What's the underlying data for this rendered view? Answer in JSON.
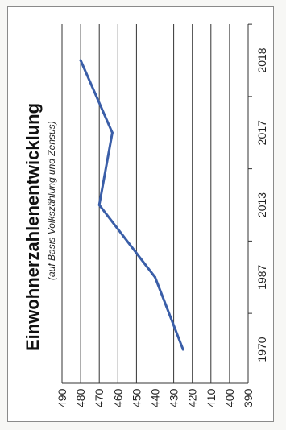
{
  "chart_data": {
    "type": "line",
    "orientation": "rotated-90-ccw",
    "title": "Einwohnerzahlenentwicklung",
    "subtitle": "(auf Basis Volkszählung und Zensus)",
    "categories": [
      "1970",
      "1987",
      "2013",
      "2017",
      "2018"
    ],
    "x": [
      1970,
      1987,
      2013,
      2017,
      2018
    ],
    "series": [
      {
        "values": [
          425,
          440,
          470,
          463,
          480
        ],
        "color": "#3a5ea8"
      }
    ],
    "yticks": [
      390,
      400,
      410,
      420,
      430,
      440,
      450,
      460,
      470,
      480,
      490
    ],
    "ylim": [
      390,
      490
    ],
    "grid": true,
    "legend": "none"
  }
}
